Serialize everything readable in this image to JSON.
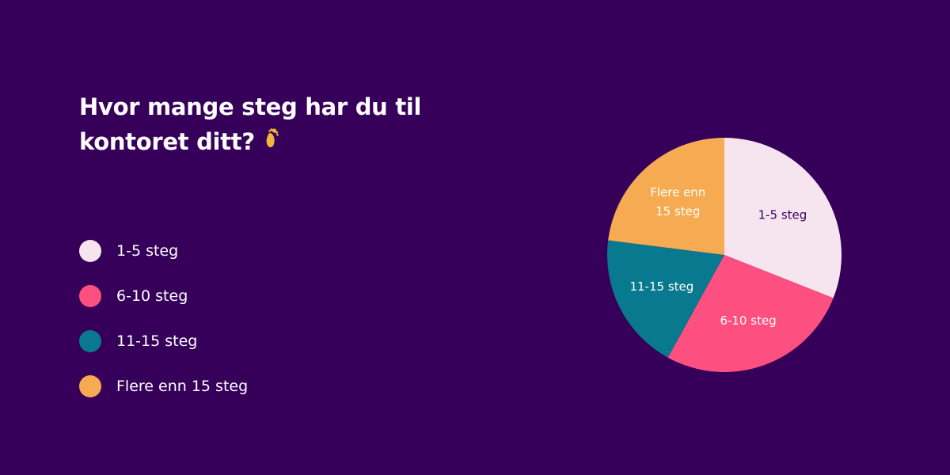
{
  "title": {
    "line1": "Hvor mange steg har du til",
    "line2": "kontoret ditt?",
    "icon": "footprint-icon"
  },
  "chart_data": {
    "type": "pie",
    "title": "Hvor mange steg har du til kontoret ditt?",
    "legend_position": "left",
    "slices": [
      {
        "label": "1-5 steg",
        "slice_label": [
          "1-5 steg"
        ],
        "value": 31,
        "color": "#f6e4ef",
        "text_color": "#36005a"
      },
      {
        "label": "6-10 steg",
        "slice_label": [
          "6-10 steg"
        ],
        "value": 27,
        "color": "#fd4f80",
        "text_color": "#ffffff"
      },
      {
        "label": "11-15 steg",
        "slice_label": [
          "11-15 steg"
        ],
        "value": 19,
        "color": "#08798e",
        "text_color": "#ffffff"
      },
      {
        "label": "Flere enn 15 steg",
        "slice_label": [
          "Flere enn",
          "15 steg"
        ],
        "value": 23,
        "color": "#f6ab52",
        "text_color": "#ffffff"
      }
    ]
  }
}
